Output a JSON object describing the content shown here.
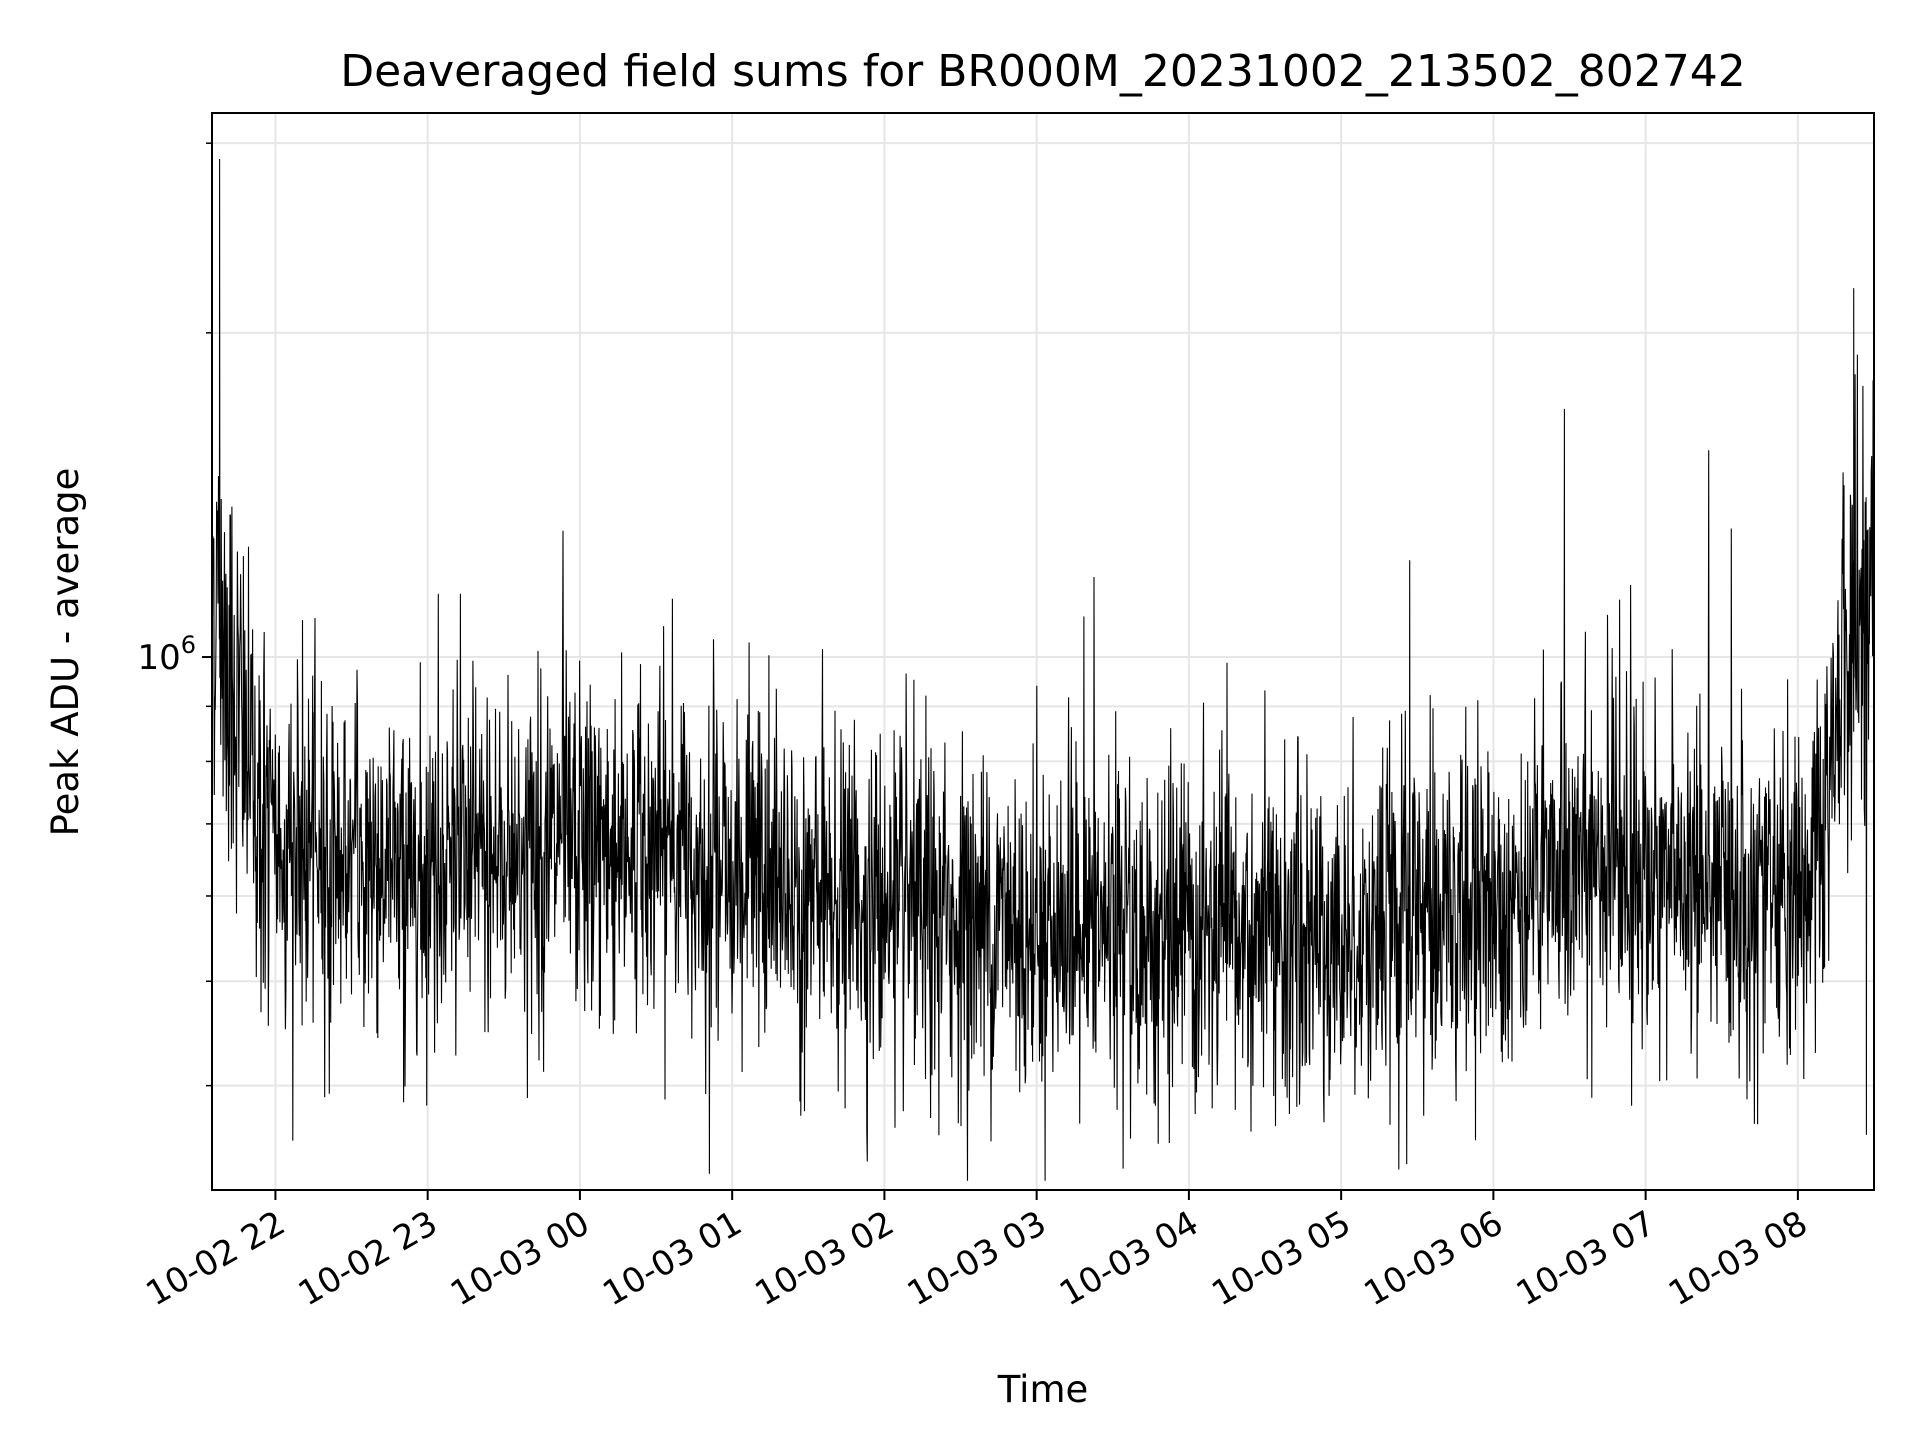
{
  "chart_data": {
    "type": "line",
    "title": "Deaveraged field sums for BR000M_20231002_213502_802742",
    "xlabel": "Time",
    "ylabel": "Peak ADU - average",
    "yscale": "log",
    "grid": true,
    "legend": "none",
    "line_color": "#000000",
    "grid_color": "#e6e6e6",
    "x_tick_labels": [
      "10-02 22",
      "10-02 23",
      "10-03 00",
      "10-03 01",
      "10-03 02",
      "10-03 03",
      "10-03 04",
      "10-03 05",
      "10-03 06",
      "10-03 07",
      "10-03 08"
    ],
    "x_ticks": [
      "2023-10-02T22:00",
      "2023-10-02T23:00",
      "2023-10-03T00:00",
      "2023-10-03T01:00",
      "2023-10-03T02:00",
      "2023-10-03T03:00",
      "2023-10-03T04:00",
      "2023-10-03T05:00",
      "2023-10-03T06:00",
      "2023-10-03T07:00",
      "2023-10-03T08:00"
    ],
    "xlim": [
      "2023-10-02T21:35",
      "2023-10-03T08:30"
    ],
    "y_major_tick_label": "10^6",
    "y_major_tick": 1000000,
    "y_minor_ticks": [
      400000,
      500000,
      600000,
      700000,
      800000,
      900000,
      2000000,
      3000000
    ],
    "ylim": [
      320000,
      3200000
    ],
    "series": [
      {
        "x": [
          "2023-10-02T21:35",
          "2023-10-02T21:40",
          "2023-10-02T21:45",
          "2023-10-02T21:50",
          "2023-10-02T21:55",
          "2023-10-02T22:00",
          "2023-10-02T22:15",
          "2023-10-02T22:30",
          "2023-10-02T22:45",
          "2023-10-02T23:00",
          "2023-10-02T23:15",
          "2023-10-02T23:30",
          "2023-10-02T23:45",
          "2023-10-03T00:00",
          "2023-10-03T00:15",
          "2023-10-03T00:30",
          "2023-10-03T00:45",
          "2023-10-03T01:00",
          "2023-10-03T01:15",
          "2023-10-03T01:30",
          "2023-10-03T01:45",
          "2023-10-03T02:00",
          "2023-10-03T02:15",
          "2023-10-03T02:30",
          "2023-10-03T02:45",
          "2023-10-03T03:00",
          "2023-10-03T03:15",
          "2023-10-03T03:30",
          "2023-10-03T03:45",
          "2023-10-03T04:00",
          "2023-10-03T04:15",
          "2023-10-03T04:30",
          "2023-10-03T04:45",
          "2023-10-03T05:00",
          "2023-10-03T05:15",
          "2023-10-03T05:30",
          "2023-10-03T05:45",
          "2023-10-03T06:00",
          "2023-10-03T06:15",
          "2023-10-03T06:30",
          "2023-10-03T06:45",
          "2023-10-03T07:00",
          "2023-10-03T07:15",
          "2023-10-03T07:30",
          "2023-10-03T07:45",
          "2023-10-03T08:00",
          "2023-10-03T08:10",
          "2023-10-03T08:15",
          "2023-10-03T08:20",
          "2023-10-03T08:25",
          "2023-10-03T08:30"
        ],
        "y": [
          1200000,
          1050000,
          900000,
          780000,
          700000,
          670000,
          660000,
          650000,
          645000,
          640000,
          650000,
          655000,
          660000,
          665000,
          670000,
          668000,
          660000,
          640000,
          615000,
          600000,
          590000,
          580000,
          575000,
          570000,
          568000,
          565000,
          560000,
          555000,
          550000,
          548000,
          545000,
          545000,
          548000,
          550000,
          560000,
          575000,
          590000,
          600000,
          615000,
          635000,
          640000,
          630000,
          620000,
          610000,
          605000,
          600000,
          640000,
          900000,
          1050000,
          1100000,
          1150000
        ],
        "noise_band": [
          1.35,
          1.3
        ]
      }
    ]
  }
}
